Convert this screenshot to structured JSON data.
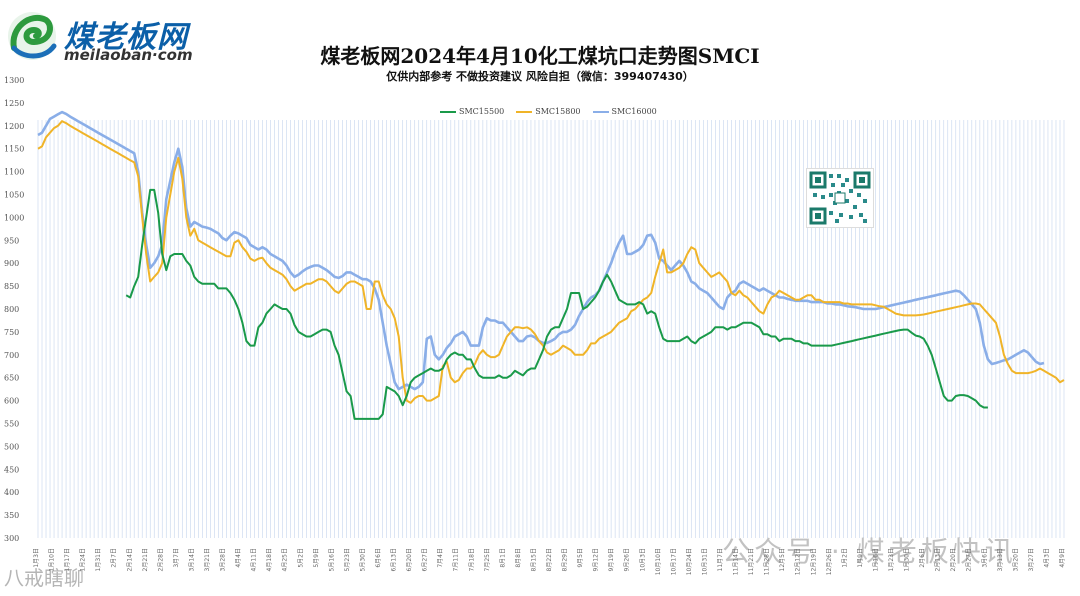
{
  "brand": {
    "name_cn": "煤老板网",
    "domain": "meilaoban·com"
  },
  "title": "煤老板网2024年4月10化工煤坑口走势图SMCI",
  "subtitle": "仅供内部参考 不做投资建议 风险自担（微信：399407430）",
  "watermarks": {
    "right": "公众号 · 煤老板快讯",
    "left": "八戒瞎聊"
  },
  "colors": {
    "SMCI5500": "#1a9a4a",
    "SMCI5800": "#f0b428",
    "SMCI6000": "#8aaee8",
    "grid": "#c4d4ec"
  },
  "chart_data": {
    "type": "line",
    "title": "煤老板网2024年4月10化工煤坑口走势图SMCI",
    "ylim": [
      300,
      1300
    ],
    "yticks": [
      300,
      350,
      400,
      450,
      500,
      550,
      600,
      650,
      700,
      750,
      800,
      850,
      900,
      950,
      1000,
      1050,
      1100,
      1150,
      1200,
      1250,
      1300
    ],
    "legend_position": "top-center",
    "x_tick_labels": [
      "1月3日",
      "1月10日",
      "1月17日",
      "1月24日",
      "1月31日",
      "2月7日",
      "2月14日",
      "2月21日",
      "2月28日",
      "3月7日",
      "3月14日",
      "3月21日",
      "3月28日",
      "4月4日",
      "4月11日",
      "4月18日",
      "4月25日",
      "5月2日",
      "5月9日",
      "5月16日",
      "5月23日",
      "5月30日",
      "6月6日",
      "6月13日",
      "6月20日",
      "6月27日",
      "7月4日",
      "7月11日",
      "7月18日",
      "7月25日",
      "8月1日",
      "8月8日",
      "8月15日",
      "8月22日",
      "8月29日",
      "9月5日",
      "9月12日",
      "9月19日",
      "9月26日",
      "10月3日",
      "10月10日",
      "10月17日",
      "10月24日",
      "10月31日",
      "11月7日",
      "11月14日",
      "11月21日",
      "11月28日",
      "12月5日",
      "12月12日",
      "12月19日",
      "12月26日",
      "1月2日",
      "1月9日",
      "1月16日",
      "1月23日",
      "1月30日",
      "2月6日",
      "2月13日",
      "2月20日",
      "2月27日",
      "3月6日",
      "3月13日",
      "3月20日",
      "3月27日",
      "4月3日",
      "4月9日"
    ],
    "series": [
      {
        "name": "SMC15500",
        "color": "#1a9a4a",
        "start": 22,
        "values": [
          830,
          825,
          850,
          870,
          940,
          1000,
          1060,
          1060,
          1010,
          920,
          885,
          915,
          920,
          920,
          920,
          905,
          895,
          870,
          860,
          855,
          855,
          855,
          855,
          845,
          845,
          845,
          835,
          820,
          800,
          770,
          730,
          720,
          720,
          760,
          770,
          790,
          800,
          810,
          805,
          800,
          800,
          790,
          765,
          750,
          745,
          740,
          740,
          745,
          750,
          755,
          755,
          750,
          720,
          700,
          660,
          620,
          610,
          560,
          560,
          560,
          560,
          560,
          560,
          560,
          570,
          630,
          625,
          620,
          610,
          590,
          610,
          640,
          650,
          655,
          660,
          665,
          670,
          665,
          665,
          670,
          690,
          700,
          705,
          700,
          700,
          690,
          690,
          670,
          655,
          650,
          650,
          650,
          650,
          655,
          650,
          650,
          655,
          665,
          660,
          655,
          665,
          670,
          670,
          690,
          710,
          740,
          755,
          760,
          760,
          780,
          800,
          835,
          835,
          835,
          800,
          805,
          815,
          825,
          840,
          860,
          875,
          860,
          840,
          820,
          815,
          810,
          810,
          810,
          815,
          810,
          790,
          795,
          790,
          760,
          735,
          730,
          730,
          730,
          730,
          735,
          740,
          730,
          725,
          735,
          740,
          745,
          750,
          760,
          760,
          760,
          755,
          760,
          760,
          765,
          770,
          770,
          770,
          765,
          760,
          745,
          745,
          740,
          740,
          730,
          735,
          735,
          735,
          730,
          730,
          725,
          725,
          720,
          720,
          720,
          720,
          720,
          720,
          722,
          724,
          726,
          728,
          730,
          732,
          734,
          736,
          738,
          740,
          742,
          744,
          746,
          748,
          750,
          752,
          754,
          755,
          755,
          748,
          742,
          740,
          735,
          720,
          700,
          670,
          640,
          610,
          600,
          600,
          610,
          612,
          612,
          610,
          605,
          600,
          590,
          585,
          585
        ]
      },
      {
        "name": "SMC15800",
        "color": "#f0b428",
        "start": 0,
        "values": [
          1150,
          1155,
          1175,
          1185,
          1195,
          1200,
          1210,
          1206,
          1200,
          1195,
          1190,
          1185,
          1180,
          1175,
          1170,
          1165,
          1160,
          1155,
          1150,
          1145,
          1140,
          1135,
          1130,
          1125,
          1120,
          1090,
          1000,
          920,
          860,
          870,
          880,
          900,
          1000,
          1050,
          1100,
          1130,
          1085,
          1000,
          960,
          975,
          950,
          945,
          940,
          935,
          930,
          925,
          920,
          915,
          915,
          945,
          950,
          935,
          925,
          910,
          905,
          910,
          912,
          900,
          890,
          885,
          880,
          875,
          865,
          850,
          840,
          845,
          850,
          855,
          855,
          860,
          865,
          865,
          860,
          850,
          840,
          835,
          845,
          855,
          860,
          860,
          855,
          850,
          800,
          800,
          860,
          860,
          830,
          810,
          800,
          780,
          740,
          650,
          600,
          595,
          605,
          610,
          610,
          600,
          600,
          605,
          610,
          675,
          685,
          650,
          640,
          645,
          660,
          670,
          670,
          680,
          700,
          710,
          700,
          695,
          695,
          700,
          720,
          740,
          750,
          760,
          760,
          758,
          760,
          755,
          745,
          730,
          720,
          705,
          700,
          705,
          710,
          720,
          715,
          710,
          700,
          700,
          700,
          710,
          725,
          725,
          735,
          740,
          745,
          750,
          760,
          770,
          775,
          780,
          795,
          800,
          810,
          820,
          825,
          835,
          870,
          900,
          930,
          880,
          880,
          885,
          890,
          900,
          920,
          935,
          930,
          900,
          890,
          880,
          870,
          875,
          880,
          870,
          860,
          835,
          830,
          840,
          830,
          825,
          815,
          805,
          795,
          790,
          810,
          825,
          830,
          840,
          835,
          830,
          825,
          820,
          820,
          825,
          830,
          830,
          820,
          820,
          815,
          815,
          815,
          815,
          815,
          812,
          812,
          810,
          810,
          810,
          810,
          810,
          810,
          808,
          806,
          805,
          800,
          795,
          790,
          788,
          786,
          786,
          786,
          786,
          787,
          788,
          790,
          792,
          794,
          796,
          798,
          800,
          802,
          804,
          806,
          808,
          810,
          812,
          812,
          810,
          800,
          790,
          780,
          770,
          740,
          700,
          680,
          665,
          660,
          660,
          660,
          660,
          662,
          665,
          670,
          665,
          660,
          655,
          650,
          640,
          645
        ]
      },
      {
        "name": "SMC16000",
        "color": "#8aaee8",
        "start": 0,
        "values": [
          1180,
          1185,
          1200,
          1215,
          1220,
          1225,
          1230,
          1226,
          1220,
          1215,
          1210,
          1205,
          1200,
          1195,
          1190,
          1185,
          1180,
          1175,
          1170,
          1165,
          1160,
          1155,
          1150,
          1145,
          1140,
          1100,
          1010,
          940,
          890,
          900,
          915,
          940,
          1040,
          1080,
          1120,
          1150,
          1110,
          1020,
          980,
          990,
          985,
          980,
          978,
          975,
          970,
          965,
          955,
          950,
          960,
          968,
          965,
          960,
          955,
          940,
          935,
          930,
          935,
          930,
          920,
          915,
          910,
          905,
          895,
          880,
          870,
          875,
          882,
          888,
          892,
          895,
          895,
          890,
          885,
          878,
          870,
          868,
          872,
          880,
          880,
          875,
          870,
          865,
          865,
          860,
          845,
          820,
          770,
          720,
          680,
          640,
          625,
          630,
          635,
          630,
          625,
          630,
          640,
          735,
          740,
          700,
          690,
          700,
          715,
          725,
          740,
          745,
          750,
          740,
          720,
          720,
          720,
          760,
          780,
          775,
          775,
          770,
          770,
          760,
          750,
          740,
          730,
          730,
          740,
          742,
          738,
          730,
          726,
          726,
          730,
          735,
          745,
          750,
          750,
          755,
          765,
          785,
          800,
          815,
          825,
          830,
          840,
          860,
          880,
          900,
          925,
          945,
          960,
          920,
          920,
          925,
          930,
          940,
          960,
          962,
          945,
          910,
          905,
          895,
          885,
          895,
          905,
          895,
          880,
          860,
          855,
          845,
          840,
          835,
          825,
          815,
          805,
          800,
          825,
          835,
          840,
          855,
          860,
          855,
          850,
          845,
          840,
          845,
          840,
          835,
          830,
          825,
          825,
          822,
          820,
          818,
          818,
          818,
          818,
          815,
          815,
          815,
          815,
          812,
          812,
          810,
          810,
          808,
          806,
          805,
          804,
          802,
          800,
          800,
          800,
          800,
          802,
          804,
          806,
          808,
          810,
          812,
          814,
          816,
          818,
          820,
          822,
          824,
          826,
          828,
          830,
          832,
          834,
          836,
          838,
          840,
          838,
          830,
          820,
          810,
          800,
          770,
          720,
          690,
          680,
          682,
          685,
          688,
          690,
          695,
          700,
          705,
          710,
          705,
          695,
          685,
          680,
          682
        ]
      }
    ]
  }
}
